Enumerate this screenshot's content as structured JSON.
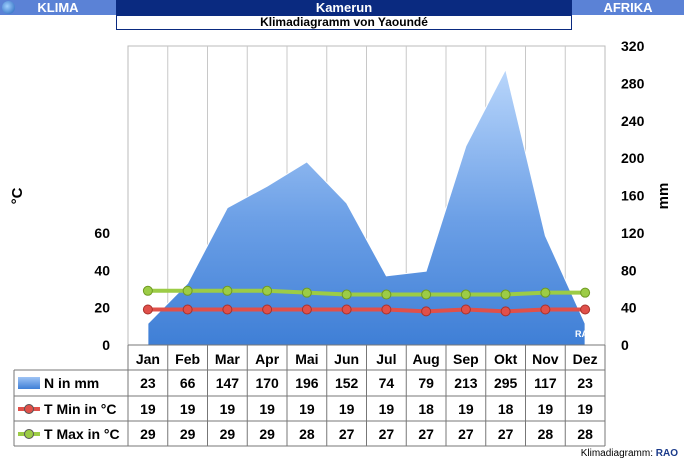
{
  "header": {
    "left": "KLIMA",
    "title": "Kamerun",
    "right": "AFRIKA"
  },
  "subtitle": "Klimadiagramm von Yaoundé",
  "footer": {
    "label": "Klimadiagramm:",
    "brand": "RAO"
  },
  "watermark": "RAO",
  "chart_data": {
    "type": "area",
    "categories": [
      "Jan",
      "Feb",
      "Mar",
      "Apr",
      "Mai",
      "Jun",
      "Jul",
      "Aug",
      "Sep",
      "Okt",
      "Nov",
      "Dez"
    ],
    "ylabel_left": "°C",
    "ylabel_right": "mm",
    "yticks_left": [
      0,
      20,
      40,
      60
    ],
    "yticks_right": [
      0,
      40,
      80,
      120,
      160,
      200,
      240,
      280,
      320
    ],
    "ylim_left": [
      0,
      160
    ],
    "ylim_right": [
      0,
      320
    ],
    "series": [
      {
        "name": "N in mm",
        "axis": "right",
        "type": "area",
        "color": "#4f8de0",
        "values": [
          23,
          66,
          147,
          170,
          196,
          152,
          74,
          79,
          213,
          295,
          117,
          23
        ]
      },
      {
        "name": "T Min in °C",
        "axis": "left",
        "type": "line",
        "color": "#e0504a",
        "values": [
          19,
          19,
          19,
          19,
          19,
          19,
          19,
          18,
          19,
          18,
          19,
          19
        ]
      },
      {
        "name": "T Max in °C",
        "axis": "left",
        "type": "line",
        "color": "#9ccc46",
        "values": [
          29,
          29,
          29,
          29,
          28,
          27,
          27,
          27,
          27,
          27,
          28,
          28
        ]
      }
    ]
  }
}
